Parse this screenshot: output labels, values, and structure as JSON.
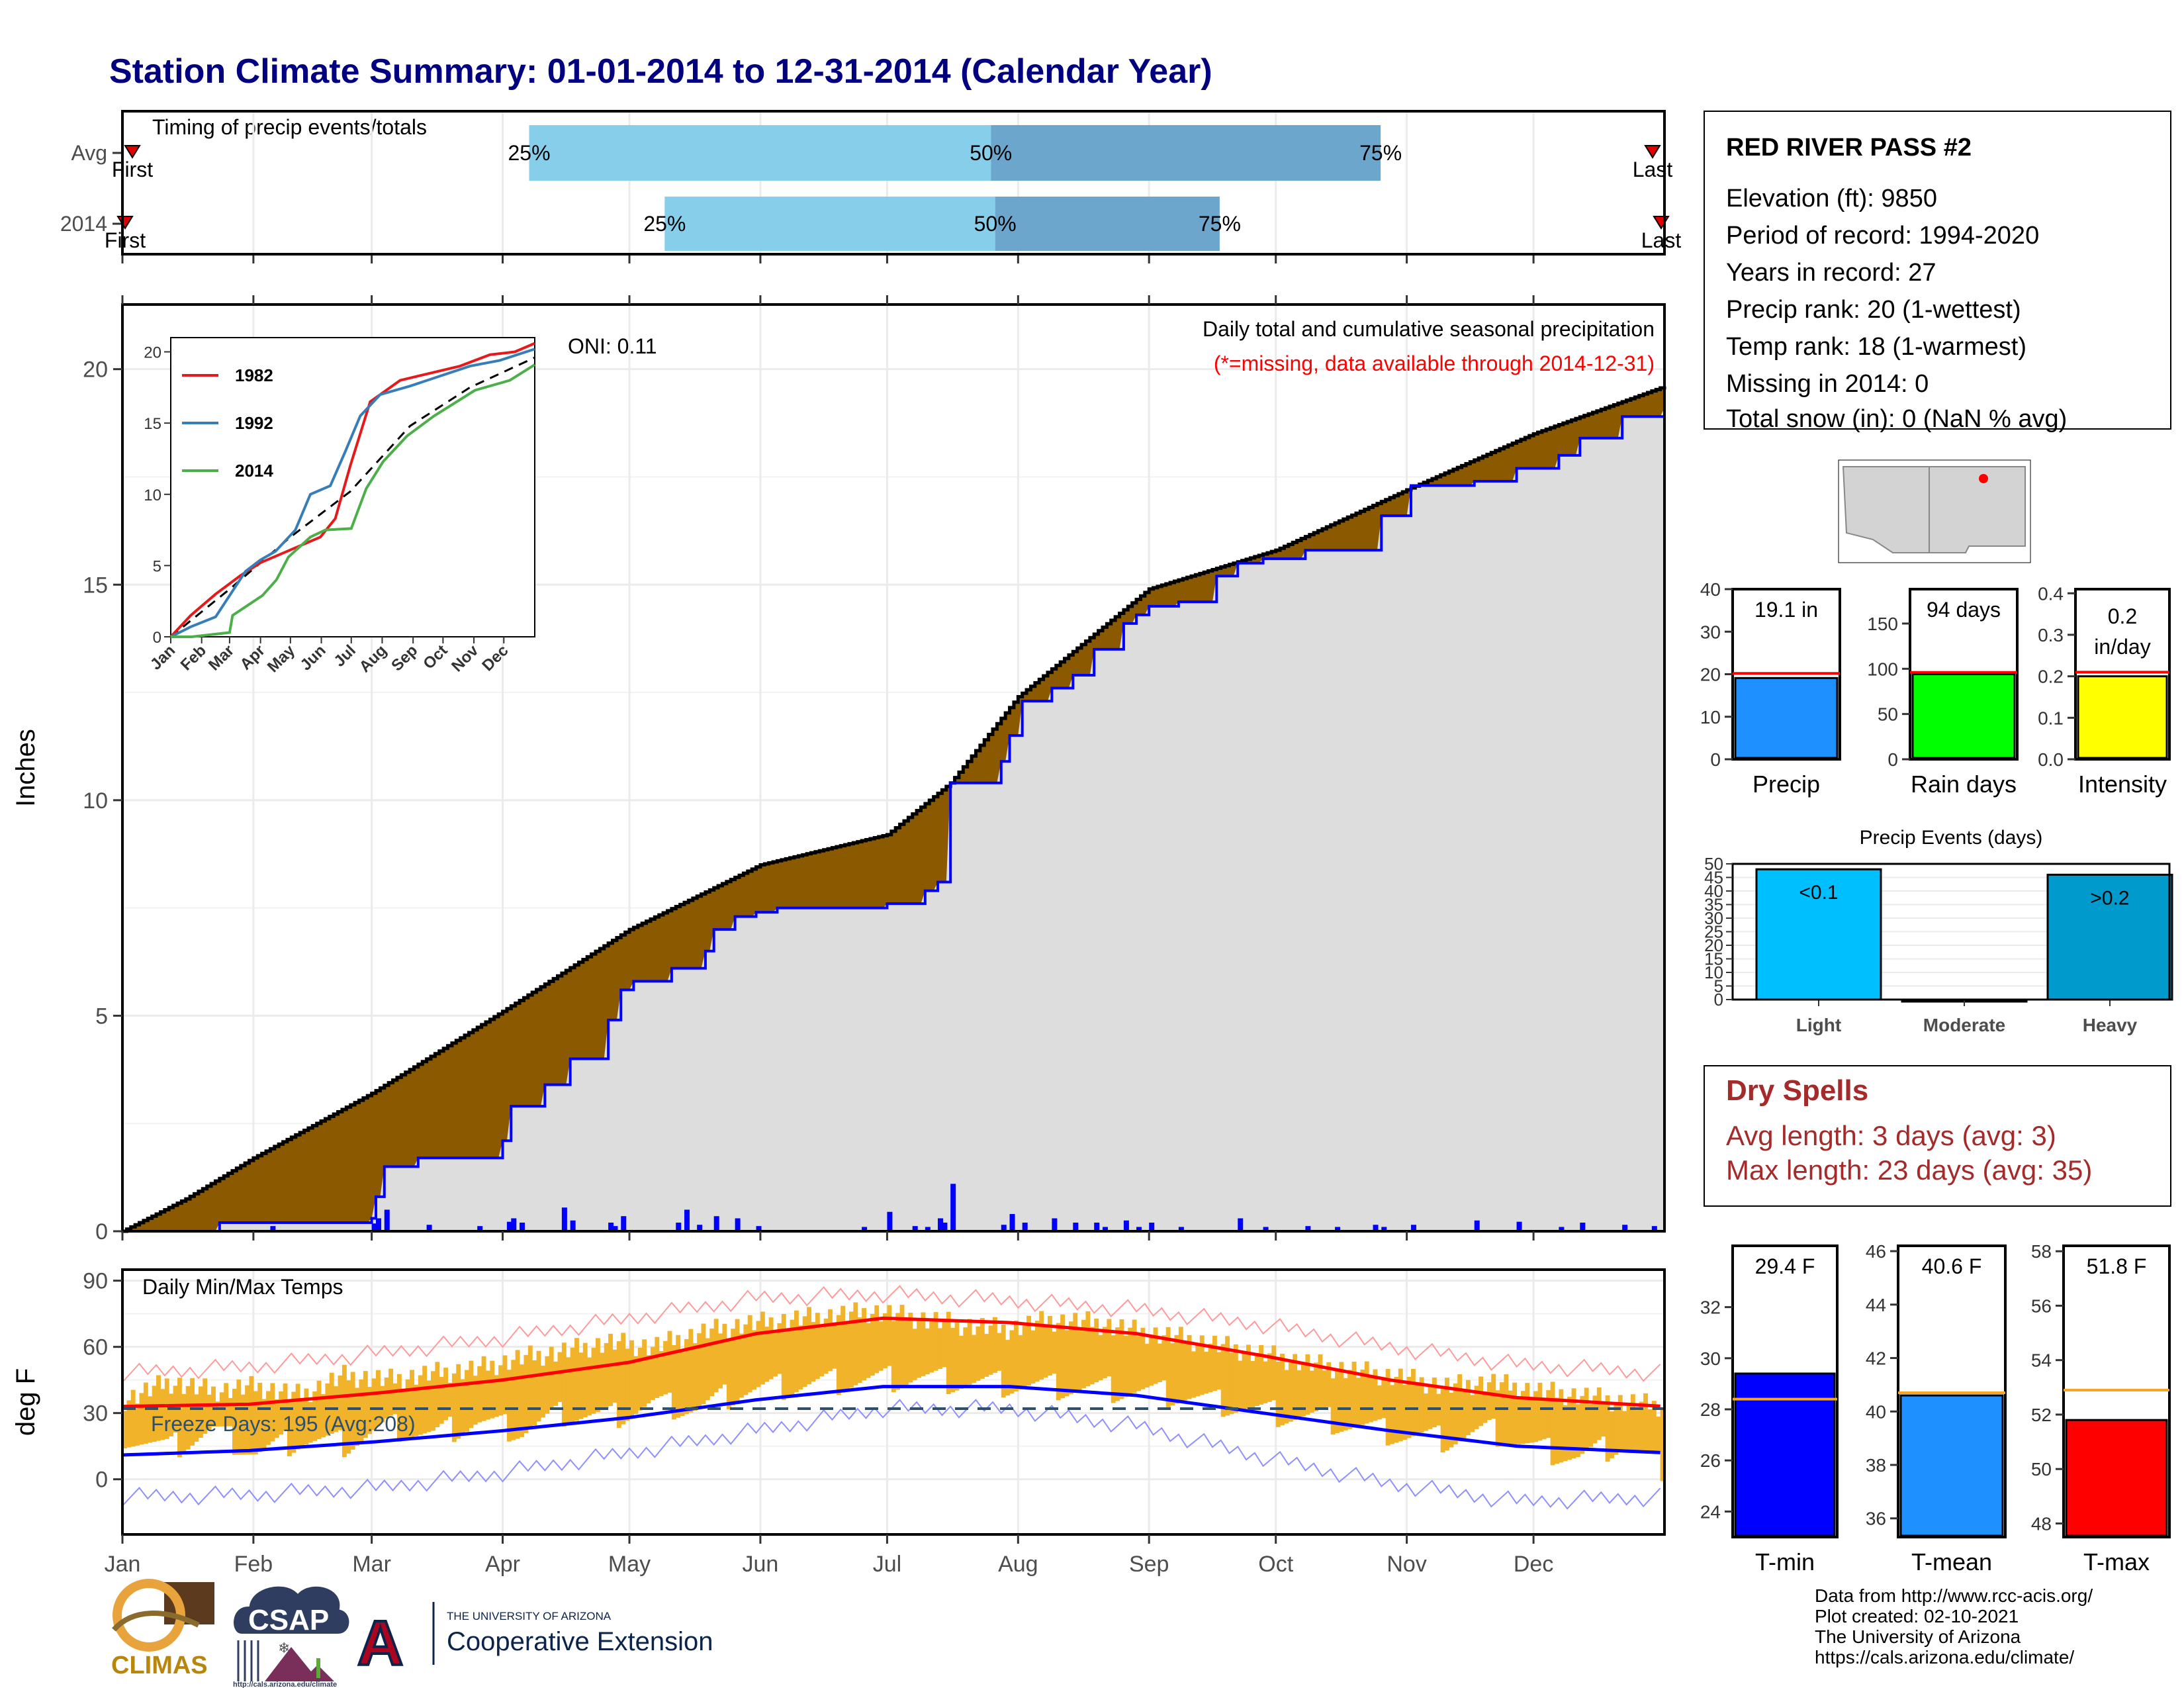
{
  "title": "Station Climate Summary: 01-01-2014 to 12-31-2014 (Calendar Year)",
  "colors": {
    "title": "#000080",
    "dry_spell_text": "#A52A2A",
    "q_light": "#87CEEB",
    "q_dark": "#6CA6CD",
    "surplus": "#8B5A00",
    "deficit": "#228B22",
    "cum_avg_fill": "#DDDDDD",
    "cum_2014_line": "#0000FF",
    "daily_bar": "#0000FF",
    "temp_range": "#F0B32A",
    "tmax_avg": "#FF0000",
    "tmin_avg": "#0000FF",
    "ref_tmax": "#FF9A9A",
    "ref_tmin": "#8F8FFF",
    "freeze_line": "#2F4F6F",
    "precip_bar": "#1E90FF",
    "rain_bar": "#00FF00",
    "intensity_bar": "#FFFF00",
    "light_bar": "#00BFFF",
    "heavy_bar": "#009ACD",
    "tmin_bar": "#0000FF",
    "tmean_bar": "#1E90FF",
    "tmax_bar": "#FF0000",
    "avg_line_red": "#FF0000",
    "avg_line_orange": "#F5A623",
    "csap_cloud": "#2F3E60",
    "az_red": "#AB0520",
    "az_blue": "#0C234B"
  },
  "chart_data": [
    {
      "id": "timing",
      "type": "bar",
      "title": "Timing of precip events/totals",
      "categories": [
        "Avg",
        "2014"
      ],
      "series": [
        {
          "name": "Avg",
          "first": 1,
          "q25": 97,
          "q50": 206,
          "q75": 298,
          "last": 358
        },
        {
          "name": "2014",
          "first": 1,
          "q25": 129,
          "q50": 207,
          "q75": 260,
          "last": 365
        }
      ],
      "markers": {
        "first": "First",
        "last": "Last"
      },
      "quartile_labels": [
        "25%",
        "50%",
        "75%"
      ],
      "xlim": [
        1,
        365
      ]
    },
    {
      "id": "cumulative-precip",
      "type": "area",
      "title": "Daily total and cumulative seasonal precipitation",
      "note": "(*=missing, data available through 2014-12-31)",
      "oni": "ONI: 0.11",
      "ylabel": "Inches",
      "ylim": [
        0,
        21.5
      ],
      "yticks": [
        0,
        5,
        10,
        15,
        20
      ],
      "xticks": [
        "Jan",
        "Feb",
        "Mar",
        "Apr",
        "May",
        "Jun",
        "Jul",
        "Aug",
        "Sep",
        "Oct",
        "Nov",
        "Dec"
      ],
      "avg_cumulative": {
        "x": [
          0,
          15,
          31,
          59,
          90,
          120,
          151,
          181,
          196,
          212,
          243,
          273,
          304,
          334,
          365
        ],
        "y": [
          0,
          0.75,
          1.7,
          3.2,
          5.1,
          7.0,
          8.5,
          9.2,
          10.4,
          12.4,
          14.9,
          15.8,
          17.2,
          18.5,
          19.6
        ]
      },
      "cumulative_2014": {
        "x": [
          0,
          21,
          23,
          59,
          60,
          62,
          70,
          90,
          92,
          100,
          106,
          115,
          118,
          121,
          130,
          138,
          140,
          145,
          150,
          155,
          178,
          181,
          190,
          193,
          196,
          208,
          210,
          213,
          220,
          225,
          230,
          237,
          240,
          243,
          250,
          259,
          264,
          270,
          280,
          298,
          305,
          320,
          330,
          340,
          345,
          355,
          365
        ],
        "y": [
          0,
          0,
          0.2,
          0.3,
          0.8,
          1.5,
          1.7,
          2.1,
          2.9,
          3.4,
          4.0,
          4.9,
          5.6,
          5.8,
          6.1,
          6.5,
          7.0,
          7.3,
          7.4,
          7.5,
          7.5,
          7.6,
          7.9,
          8.1,
          10.4,
          10.9,
          11.5,
          12.3,
          12.6,
          12.9,
          13.5,
          14.1,
          14.3,
          14.5,
          14.6,
          15.2,
          15.5,
          15.6,
          15.8,
          16.6,
          17.3,
          17.4,
          17.7,
          18.0,
          18.4,
          18.9,
          19.1
        ]
      },
      "daily_bars": {
        "x": [
          35,
          59,
          60,
          62,
          72,
          84,
          91,
          92,
          94,
          104,
          106,
          115,
          116,
          118,
          131,
          133,
          136,
          140,
          145,
          150,
          175,
          181,
          187,
          190,
          193,
          194,
          196,
          208,
          210,
          213,
          220,
          225,
          230,
          232,
          237,
          240,
          243,
          250,
          264,
          270,
          280,
          287,
          296,
          298,
          305,
          320,
          330,
          340,
          345,
          355,
          362
        ],
        "y": [
          0.12,
          0.18,
          0.3,
          0.5,
          0.15,
          0.12,
          0.22,
          0.3,
          0.2,
          0.55,
          0.25,
          0.2,
          0.12,
          0.35,
          0.2,
          0.5,
          0.15,
          0.35,
          0.3,
          0.12,
          0.1,
          0.45,
          0.12,
          0.1,
          0.3,
          0.2,
          1.1,
          0.15,
          0.4,
          0.2,
          0.3,
          0.2,
          0.2,
          0.1,
          0.25,
          0.1,
          0.2,
          0.1,
          0.3,
          0.1,
          0.12,
          0.1,
          0.15,
          0.1,
          0.15,
          0.25,
          0.22,
          0.1,
          0.2,
          0.15,
          0.12
        ]
      },
      "inset": {
        "type": "line",
        "ylim": [
          0,
          21
        ],
        "yticks": [
          0,
          5,
          10,
          15,
          20
        ],
        "xticks": [
          "Jan",
          "Feb",
          "Mar",
          "Apr",
          "May",
          "Jun",
          "Jul",
          "Aug",
          "Sep",
          "Oct",
          "Nov",
          "Dec"
        ],
        "series": [
          {
            "name": "1982",
            "color": "#E41A1C",
            "x": [
              0,
              20,
              45,
              70,
              90,
              110,
              150,
              165,
              180,
              200,
              230,
              260,
              290,
              320,
              345,
              365
            ],
            "y": [
              0,
              1.5,
              3,
              4.3,
              5.2,
              5.8,
              7.0,
              8.3,
              12.0,
              16.5,
              18.0,
              18.5,
              19.0,
              19.8,
              20.0,
              20.6
            ]
          },
          {
            "name": "1992",
            "color": "#377EB8",
            "x": [
              0,
              20,
              45,
              60,
              75,
              90,
              105,
              125,
              140,
              160,
              175,
              190,
              210,
              240,
              270,
              300,
              330,
              365
            ],
            "y": [
              0,
              0.7,
              1.4,
              3.0,
              4.6,
              5.4,
              6.0,
              7.5,
              10.0,
              10.6,
              13.0,
              15.5,
              17.0,
              17.6,
              18.3,
              19.0,
              19.4,
              20.2
            ]
          },
          {
            "name": "2014",
            "color": "#4DAF4A",
            "x": [
              0,
              21,
              59,
              62,
              92,
              106,
              118,
              140,
              155,
              181,
              196,
              213,
              237,
              264,
              305,
              340,
              365
            ],
            "y": [
              0,
              0,
              0.3,
              1.5,
              2.9,
              4.0,
              5.6,
              7.0,
              7.5,
              7.6,
              10.4,
              12.3,
              14.1,
              15.5,
              17.3,
              18.0,
              19.1
            ]
          }
        ],
        "avg_dashed": {
          "x": [
            0,
            60,
            120,
            180,
            240,
            300,
            365
          ],
          "y": [
            0,
            3.4,
            7.0,
            10.2,
            14.8,
            17.5,
            19.6
          ]
        }
      }
    },
    {
      "id": "temps",
      "type": "line",
      "title": "Daily Min/Max Temps",
      "ylabel": "deg F",
      "ylim": [
        -25,
        95
      ],
      "yticks": [
        0,
        30,
        60,
        90
      ],
      "xticks": [
        "Jan",
        "Feb",
        "Mar",
        "Apr",
        "May",
        "Jun",
        "Jul",
        "Aug",
        "Sep",
        "Oct",
        "Nov",
        "Dec"
      ],
      "freeze_line": 32,
      "freeze_text": "Freeze Days: 195 (Avg:208)",
      "tmax_avg": {
        "x": [
          0,
          30,
          60,
          90,
          120,
          150,
          180,
          210,
          240,
          270,
          300,
          330,
          365
        ],
        "y": [
          33,
          34,
          39,
          45,
          53,
          66,
          73,
          71,
          66,
          56,
          45,
          37,
          33
        ]
      },
      "tmin_avg": {
        "x": [
          0,
          30,
          60,
          90,
          120,
          150,
          180,
          210,
          240,
          270,
          300,
          330,
          365
        ],
        "y": [
          11,
          13,
          17,
          22,
          28,
          36,
          42,
          42,
          38,
          30,
          22,
          15,
          12
        ]
      },
      "record_high": {
        "x": [
          0,
          30,
          60,
          90,
          120,
          150,
          180,
          210,
          240,
          270,
          300,
          330,
          365
        ],
        "y": [
          48,
          51,
          57,
          64,
          73,
          82,
          84,
          81,
          77,
          70,
          60,
          52,
          48
        ]
      },
      "record_low": {
        "x": [
          0,
          30,
          60,
          90,
          120,
          150,
          180,
          210,
          240,
          270,
          300,
          330,
          365
        ],
        "y": [
          -8,
          -7,
          -4,
          3,
          12,
          22,
          32,
          32,
          24,
          10,
          -2,
          -10,
          -8
        ]
      },
      "daily_range": {
        "high": [
          36,
          44,
          40,
          42,
          38,
          47,
          45,
          48,
          50,
          55,
          58,
          62,
          60,
          66,
          70,
          72,
          74,
          76,
          73,
          70,
          68,
          72,
          71,
          67,
          64,
          60,
          56,
          52,
          49,
          46,
          42,
          44,
          40,
          38,
          35,
          33
        ],
        "low": [
          20,
          14,
          22,
          12,
          18,
          16,
          24,
          20,
          26,
          22,
          30,
          28,
          34,
          32,
          40,
          42,
          44,
          45,
          46,
          44,
          43,
          42,
          41,
          40,
          38,
          34,
          30,
          28,
          24,
          20,
          18,
          22,
          14,
          10,
          16,
          4
        ]
      }
    },
    {
      "id": "precip-total",
      "type": "bar",
      "label": "Precip",
      "value": 19.1,
      "value_label": "19.1 in",
      "avg": 20.2,
      "ylim": [
        0,
        40
      ],
      "yticks": [
        0,
        10,
        20,
        30,
        40
      ]
    },
    {
      "id": "rain-days",
      "type": "bar",
      "label": "Rain days",
      "value": 94,
      "value_label": "94 days",
      "avg": 96,
      "ylim": [
        0,
        188
      ],
      "yticks": [
        0,
        50,
        100,
        150
      ]
    },
    {
      "id": "intensity",
      "type": "bar",
      "label": "Intensity",
      "value": 0.2,
      "value_label_1": "0.2",
      "value_label_2": "in/day",
      "avg": 0.21,
      "ylim": [
        0,
        0.41
      ],
      "yticks": [
        0.0,
        0.1,
        0.2,
        0.3,
        0.4
      ]
    },
    {
      "id": "precip-events",
      "type": "bar",
      "title": "Precip Events (days)",
      "categories": [
        "Light",
        "Moderate",
        "Heavy"
      ],
      "values": [
        48,
        0,
        46
      ],
      "bar_labels": [
        "<0.1",
        "",
        ">0.2"
      ],
      "ylim": [
        0,
        50
      ],
      "yticks": [
        0,
        5,
        10,
        15,
        20,
        25,
        30,
        35,
        40,
        45,
        50
      ]
    },
    {
      "id": "t-min",
      "type": "bar",
      "label": "T-min",
      "value": 29.4,
      "value_label": "29.4 F",
      "avg": 28.4,
      "ylim": [
        23,
        34.4
      ],
      "yticks": [
        24,
        26,
        28,
        30,
        32
      ]
    },
    {
      "id": "t-mean",
      "type": "bar",
      "label": "T-mean",
      "value": 40.6,
      "value_label": "40.6 F",
      "avg": 40.7,
      "ylim": [
        35.3,
        46.2
      ],
      "yticks": [
        36,
        38,
        40,
        42,
        44,
        46
      ]
    },
    {
      "id": "t-max",
      "type": "bar",
      "label": "T-max",
      "value": 51.8,
      "value_label": "51.8 F",
      "avg": 52.9,
      "ylim": [
        47.5,
        58.2
      ],
      "yticks": [
        48,
        50,
        52,
        54,
        56,
        58
      ]
    }
  ],
  "station": {
    "name": "RED RIVER PASS #2",
    "lines": [
      "Elevation (ft): 9850",
      "Period of record: 1994-2020",
      "Years in record: 27",
      "Precip rank: 20 (1-wettest)",
      "Temp rank: 18 (1-warmest)",
      "Missing in 2014: 0",
      "Total snow (in): 0 (NaN % avg)"
    ]
  },
  "dry_spells": {
    "title": "Dry Spells",
    "avg": "Avg length: 3 days (avg: 3)",
    "max": "Max length: 23 days (avg: 35)"
  },
  "credits": [
    "Data from http://www.rcc-acis.org/",
    "Plot created: 02-10-2021",
    "The University of Arizona",
    "https://cals.arizona.edu/climate/"
  ],
  "logos": {
    "climas": "CLIMAS",
    "csap": "CSAP",
    "csap_url": "http://cals.arizona.edu/climate",
    "az_letter": "A",
    "az_line1": "THE UNIVERSITY OF ARIZONA",
    "az_line2": "Cooperative Extension"
  }
}
